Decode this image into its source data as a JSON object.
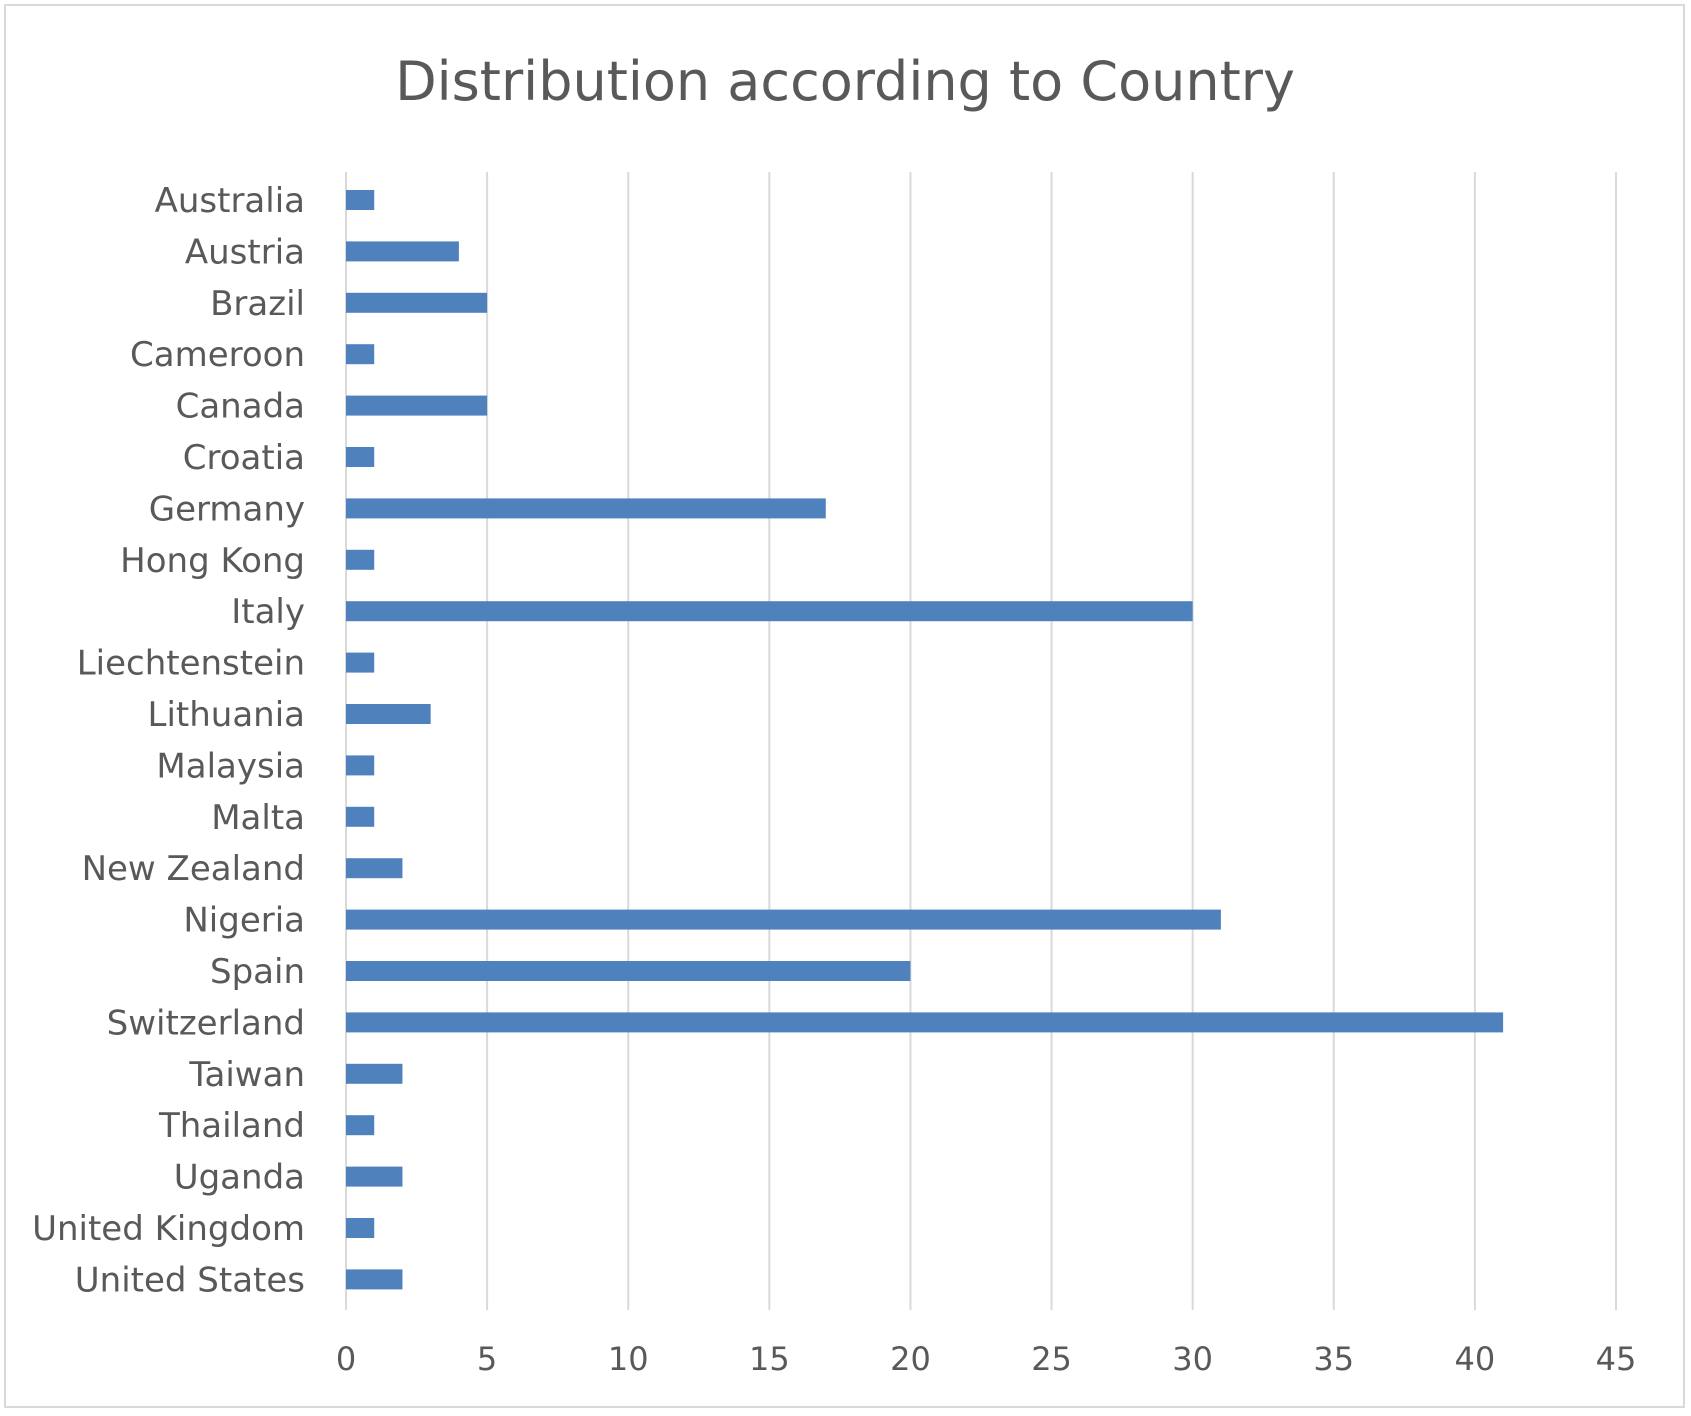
{
  "chart_data": {
    "type": "bar",
    "orientation": "horizontal",
    "title": "Distribution according to Country",
    "xlabel": "",
    "ylabel": "",
    "categories": [
      "Australia",
      "Austria",
      "Brazil",
      "Cameroon",
      "Canada",
      "Croatia",
      "Germany",
      "Hong Kong",
      "Italy",
      "Liechtenstein",
      "Lithuania",
      "Malaysia",
      "Malta",
      "New Zealand",
      "Nigeria",
      "Spain",
      "Switzerland",
      "Taiwan",
      "Thailand",
      "Uganda",
      "United Kingdom",
      "United States"
    ],
    "values": [
      1,
      4,
      5,
      1,
      5,
      1,
      17,
      1,
      30,
      1,
      3,
      1,
      1,
      2,
      31,
      20,
      41,
      2,
      1,
      2,
      1,
      2
    ],
    "xlim": [
      0,
      45
    ],
    "xticks": [
      "0",
      "5",
      "10",
      "15",
      "20",
      "25",
      "30",
      "35",
      "40",
      "45"
    ],
    "grid": "vertical",
    "legend": "none",
    "bar_color": "#4f81bd"
  }
}
